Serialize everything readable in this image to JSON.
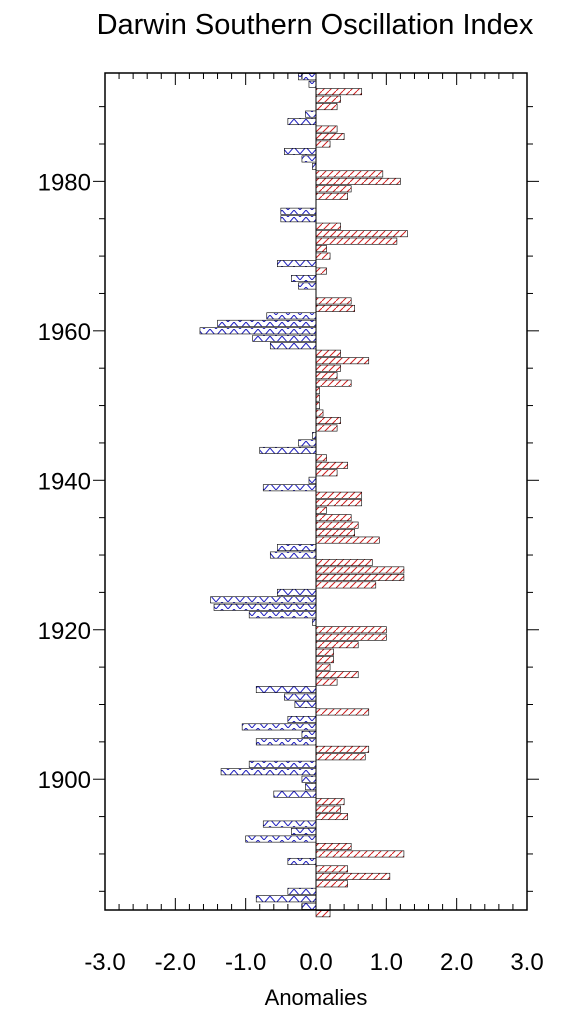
{
  "chart_data": {
    "type": "bar",
    "orientation": "horizontal",
    "title": "Darwin Southern Oscillation Index",
    "xlabel": "Anomalies",
    "ylabel": "",
    "xlim": [
      -3.0,
      3.0
    ],
    "ylim": [
      1882.5,
      1994.5
    ],
    "x_ticks": [
      -3.0,
      -2.0,
      -1.0,
      0.0,
      1.0,
      2.0,
      3.0
    ],
    "x_tick_labels": [
      "-3.0",
      "-2.0",
      "-1.0",
      "0.0",
      "1.0",
      "2.0",
      "3.0"
    ],
    "y_ticks": [
      1900,
      1920,
      1940,
      1960,
      1980
    ],
    "y_tick_labels": [
      "1900",
      "1920",
      "1940",
      "1960",
      "1980"
    ],
    "colors": {
      "positive": "#d02020",
      "negative": "#2020c0",
      "outline": "#000000"
    },
    "fill_pattern": "hatched",
    "grid": false,
    "legend": "none",
    "years": [
      1882,
      1883,
      1884,
      1885,
      1886,
      1887,
      1888,
      1889,
      1890,
      1891,
      1892,
      1893,
      1894,
      1895,
      1896,
      1897,
      1898,
      1899,
      1900,
      1901,
      1902,
      1903,
      1904,
      1905,
      1906,
      1907,
      1908,
      1909,
      1910,
      1911,
      1912,
      1913,
      1914,
      1915,
      1916,
      1917,
      1918,
      1919,
      1920,
      1921,
      1922,
      1923,
      1924,
      1925,
      1926,
      1927,
      1928,
      1929,
      1930,
      1931,
      1932,
      1933,
      1934,
      1935,
      1936,
      1937,
      1938,
      1939,
      1940,
      1941,
      1942,
      1943,
      1944,
      1945,
      1946,
      1947,
      1948,
      1949,
      1950,
      1951,
      1952,
      1953,
      1954,
      1955,
      1956,
      1957,
      1958,
      1959,
      1960,
      1961,
      1962,
      1963,
      1964,
      1965,
      1966,
      1967,
      1968,
      1969,
      1970,
      1971,
      1972,
      1973,
      1974,
      1975,
      1976,
      1977,
      1978,
      1979,
      1980,
      1981,
      1982,
      1983,
      1984,
      1985,
      1986,
      1987,
      1988,
      1989,
      1990,
      1991,
      1992,
      1993,
      1994
    ],
    "values": [
      0.2,
      -0.2,
      -0.85,
      -0.4,
      0.45,
      1.05,
      0.45,
      -0.4,
      1.25,
      0.5,
      -1.0,
      -0.35,
      -0.75,
      0.45,
      0.35,
      0.4,
      -0.6,
      -0.15,
      -0.2,
      -1.35,
      -0.95,
      0.7,
      0.75,
      -0.85,
      -0.2,
      -1.05,
      -0.4,
      0.75,
      -0.3,
      -0.45,
      -0.85,
      0.3,
      0.6,
      0.2,
      0.25,
      0.25,
      0.6,
      1.0,
      1.0,
      -0.05,
      -0.95,
      -1.45,
      -1.5,
      -0.55,
      0.85,
      1.25,
      1.25,
      0.8,
      -0.65,
      -0.55,
      0.9,
      0.55,
      0.6,
      0.5,
      0.15,
      0.65,
      0.65,
      -0.75,
      -0.1,
      0.3,
      0.45,
      0.15,
      -0.8,
      -0.25,
      -0.05,
      0.3,
      0.35,
      0.1,
      0.05,
      0.05,
      0.05,
      0.5,
      0.3,
      0.35,
      0.75,
      0.35,
      -0.65,
      -0.9,
      -1.65,
      -1.4,
      -0.7,
      0.55,
      0.5,
      0.0,
      -0.25,
      -0.35,
      0.15,
      -0.55,
      0.2,
      0.15,
      1.15,
      1.3,
      0.35,
      -0.5,
      -0.5,
      0.0,
      0.45,
      0.5,
      1.2,
      0.95,
      -0.05,
      -0.2,
      -0.45,
      0.2,
      0.4,
      0.3,
      -0.4,
      -0.15,
      0.3,
      0.35,
      0.65,
      -0.1,
      -0.25
    ]
  }
}
